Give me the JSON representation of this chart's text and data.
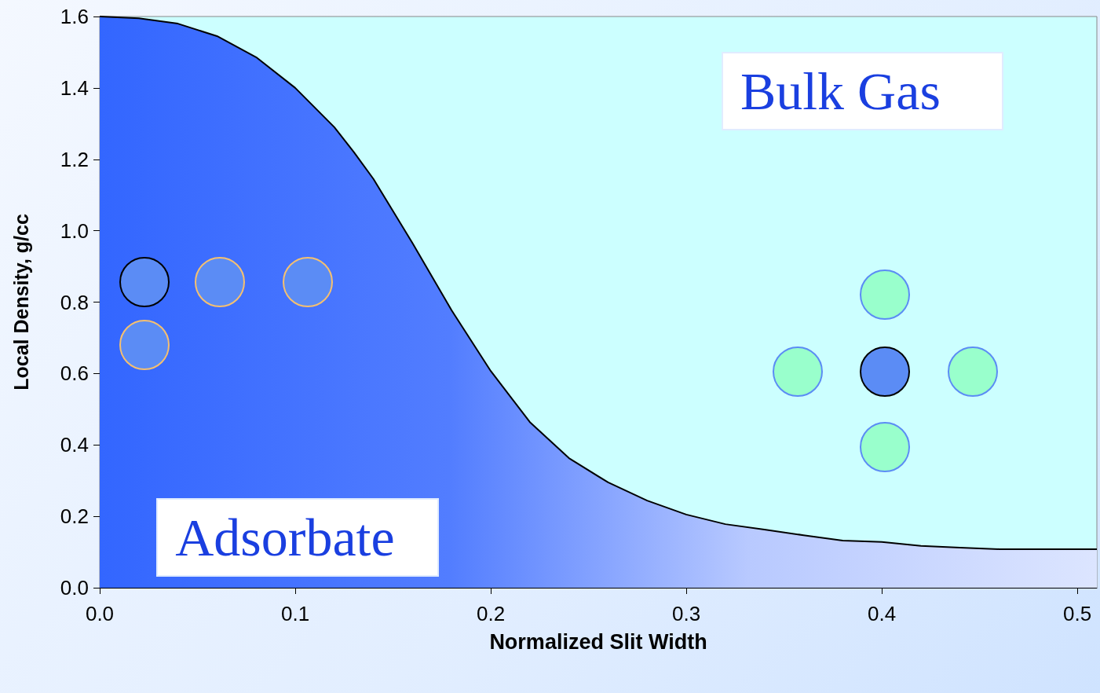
{
  "chart_data": {
    "type": "area",
    "xlabel": "Normalized Slit Width",
    "ylabel": "Local Density, g/cc",
    "x": [
      0,
      0.02,
      0.04,
      0.06,
      0.08,
      0.1,
      0.12,
      0.13,
      0.14,
      0.16,
      0.18,
      0.2,
      0.22,
      0.24,
      0.26,
      0.28,
      0.3,
      0.32,
      0.34,
      0.36,
      0.38,
      0.4,
      0.42,
      0.44,
      0.46,
      0.5,
      0.51
    ],
    "series": [
      {
        "color": "#3366ff",
        "values": [
          1.6,
          1.595,
          1.58,
          1.545,
          1.486,
          1.4,
          1.29,
          1.22,
          1.145,
          0.965,
          0.777,
          0.607,
          0.464,
          0.363,
          0.295,
          0.244,
          0.205,
          0.178,
          0.163,
          0.147,
          0.132,
          0.128,
          0.117,
          0.112,
          0.108,
          0.108,
          0.108
        ]
      }
    ],
    "xlim": [
      0,
      0.51
    ],
    "xticks": [
      {
        "value": 0,
        "label": "0.0"
      },
      {
        "value": 0.1,
        "label": "0.1"
      },
      {
        "value": 0.2,
        "label": "0.2"
      },
      {
        "value": 0.3,
        "label": "0.3"
      },
      {
        "value": 0.4,
        "label": "0.4"
      },
      {
        "value": 0.5,
        "label": "0.5"
      }
    ],
    "ylim": [
      0,
      1.6
    ],
    "yticks": [
      {
        "value": 0,
        "label": "0.0"
      },
      {
        "value": 0.2,
        "label": "0.2"
      },
      {
        "value": 0.4,
        "label": "0.4"
      },
      {
        "value": 0.6,
        "label": "0.6"
      },
      {
        "value": 0.8,
        "label": "0.8"
      },
      {
        "value": 1,
        "label": "1.0"
      },
      {
        "value": 1.2,
        "label": "1.2"
      },
      {
        "value": 1.4,
        "label": "1.4"
      },
      {
        "value": 1.6,
        "label": "1.6"
      }
    ],
    "annotations": [
      "Bulk Gas",
      "Adsorbate"
    ],
    "grid": false,
    "marker": "none",
    "line_style": "solid"
  }
}
